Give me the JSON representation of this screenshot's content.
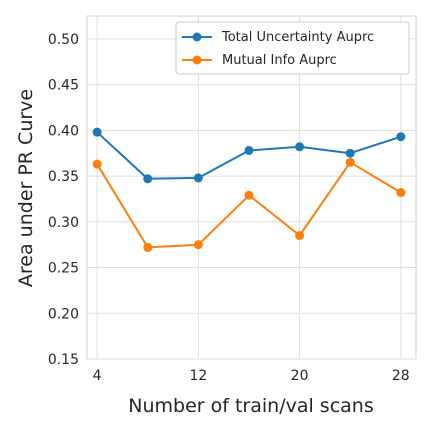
{
  "chart_data": {
    "type": "line",
    "xlabel": "Number of train/val scans",
    "ylabel": "Area under PR Curve",
    "xlim": [
      3.2,
      29.2
    ],
    "ylim": [
      0.15,
      0.525
    ],
    "x_ticks": [
      4,
      12,
      20,
      28
    ],
    "y_ticks": [
      0.15,
      0.2,
      0.25,
      0.3,
      0.35,
      0.4,
      0.45,
      0.5
    ],
    "grid": true,
    "legend_position": "top-right",
    "series": [
      {
        "name": "Total Uncertainty Auprc",
        "color": "#1f77b4",
        "x": [
          4,
          8,
          12,
          16,
          20,
          24,
          28
        ],
        "values": [
          0.398,
          0.347,
          0.348,
          0.378,
          0.382,
          0.375,
          0.393
        ]
      },
      {
        "name": "Mutual Info Auprc",
        "color": "#ff7f0e",
        "x": [
          4,
          8,
          12,
          16,
          20,
          24,
          28
        ],
        "values": [
          0.363,
          0.272,
          0.275,
          0.329,
          0.285,
          0.365,
          0.332
        ]
      }
    ]
  }
}
